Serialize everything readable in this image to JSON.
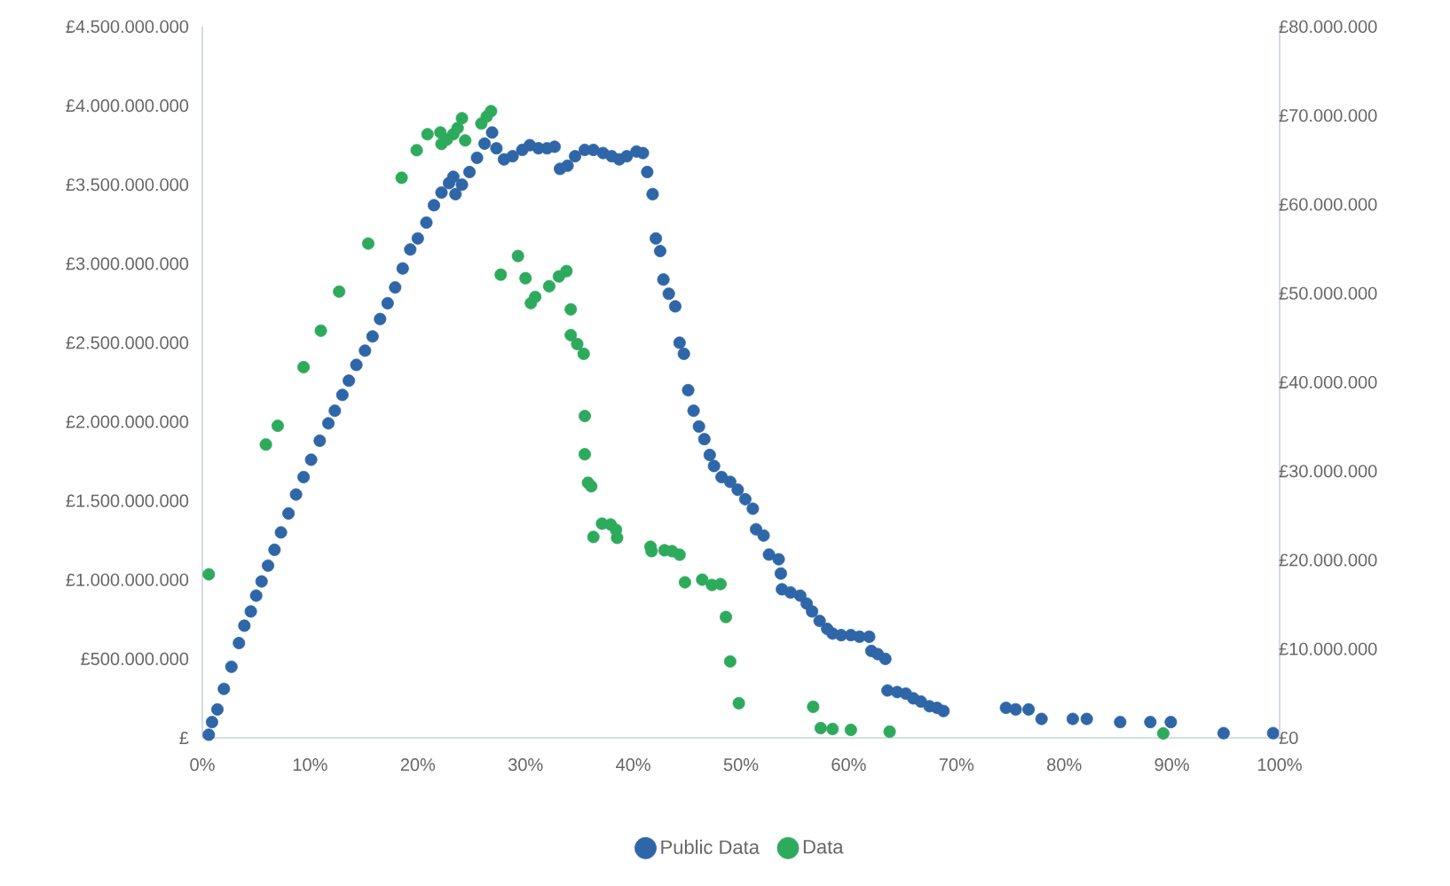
{
  "chart_data": {
    "type": "scatter",
    "marker": "circle",
    "legend": "bottom",
    "xlim": [
      0,
      100
    ],
    "xticks": [
      {
        "value": 0,
        "label": "0%"
      },
      {
        "value": 10,
        "label": "10%"
      },
      {
        "value": 20,
        "label": "20%"
      },
      {
        "value": 30,
        "label": "30%"
      },
      {
        "value": 40,
        "label": "40%"
      },
      {
        "value": 50,
        "label": "50%"
      },
      {
        "value": 60,
        "label": "60%"
      },
      {
        "value": 70,
        "label": "70%"
      },
      {
        "value": 80,
        "label": "80%"
      },
      {
        "value": 90,
        "label": "90%"
      },
      {
        "value": 100,
        "label": "100%"
      }
    ],
    "ylim": [
      0,
      4500000000.0
    ],
    "yticks": [
      {
        "value": 0,
        "label": "£"
      },
      {
        "value": 500000000.0,
        "label": "£500.000.000"
      },
      {
        "value": 1000000000.0,
        "label": "£1.000.000.000"
      },
      {
        "value": 1500000000.0,
        "label": "£1.500.000.000"
      },
      {
        "value": 2000000000.0,
        "label": "£2.000.000.000"
      },
      {
        "value": 2500000000.0,
        "label": "£2.500.000.000"
      },
      {
        "value": 3000000000.0,
        "label": "£3.000.000.000"
      },
      {
        "value": 3500000000.0,
        "label": "£3.500.000.000"
      },
      {
        "value": 4000000000.0,
        "label": "£4.000.000.000"
      },
      {
        "value": 4500000000.0,
        "label": "£4.500.000.000"
      }
    ],
    "y2lim": [
      0,
      80000000.0
    ],
    "y2ticks": [
      {
        "value": 0,
        "label": "£0"
      },
      {
        "value": 10000000.0,
        "label": "£10.000.000"
      },
      {
        "value": 20000000.0,
        "label": "£20.000.000"
      },
      {
        "value": 30000000.0,
        "label": "£30.000.000"
      },
      {
        "value": 40000000.0,
        "label": "£40.000.000"
      },
      {
        "value": 50000000.0,
        "label": "£50.000.000"
      },
      {
        "value": 60000000.0,
        "label": "£60.000.000"
      },
      {
        "value": 70000000.0,
        "label": "£70.000.000"
      },
      {
        "value": 80000000.0,
        "label": "£80.000.000"
      }
    ],
    "series": [
      {
        "name": "Public Data",
        "color": "#2f66a8",
        "x": [
          0.6,
          0.9,
          1.4,
          2.0,
          2.7,
          3.4,
          3.9,
          4.5,
          5.0,
          5.5,
          6.1,
          6.7,
          7.3,
          8.0,
          8.7,
          9.4,
          10.1,
          10.9,
          11.7,
          12.3,
          13.0,
          13.6,
          14.3,
          15.1,
          15.8,
          16.5,
          17.2,
          17.9,
          18.6,
          19.3,
          20.0,
          20.8,
          21.5,
          22.2,
          22.9,
          23.3,
          23.5,
          24.1,
          24.8,
          25.5,
          26.2,
          26.9,
          27.3,
          28.0,
          28.8,
          29.7,
          30.4,
          31.2,
          32.0,
          32.7,
          33.2,
          33.9,
          34.6,
          35.5,
          36.3,
          37.2,
          38.0,
          38.7,
          39.4,
          40.3,
          40.9,
          41.3,
          41.8,
          42.1,
          42.5,
          42.8,
          43.3,
          43.9,
          44.3,
          44.7,
          45.1,
          45.6,
          46.1,
          46.6,
          47.1,
          47.5,
          48.2,
          49.0,
          49.7,
          50.4,
          51.1,
          51.4,
          52.1,
          52.6,
          53.5,
          53.7,
          53.8,
          54.6,
          55.5,
          56.1,
          56.6,
          57.3,
          58.0,
          58.5,
          59.3,
          60.2,
          61.0,
          61.9,
          62.1,
          62.7,
          63.4,
          63.6,
          64.5,
          65.3,
          66.0,
          66.7,
          67.5,
          68.2,
          68.8,
          74.6,
          75.5,
          76.7,
          77.9,
          80.8,
          82.1,
          85.2,
          88.0,
          89.9,
          94.8,
          99.4
        ],
        "values": [
          20000000.0,
          100000000.0,
          180000000.0,
          310000000.0,
          450000000.0,
          600000000.0,
          710000000.0,
          800000000.0,
          900000000.0,
          990000000.0,
          1090000000.0,
          1190000000.0,
          1300000000.0,
          1420000000.0,
          1540000000.0,
          1650000000.0,
          1760000000.0,
          1880000000.0,
          1990000000.0,
          2070000000.0,
          2170000000.0,
          2260000000.0,
          2360000000.0,
          2450000000.0,
          2540000000.0,
          2650000000.0,
          2750000000.0,
          2850000000.0,
          2970000000.0,
          3090000000.0,
          3160000000.0,
          3260000000.0,
          3370000000.0,
          3450000000.0,
          3510000000.0,
          3550000000.0,
          3440000000.0,
          3500000000.0,
          3580000000.0,
          3670000000.0,
          3760000000.0,
          3830000000.0,
          3730000000.0,
          3660000000.0,
          3680000000.0,
          3720000000.0,
          3750000000.0,
          3730000000.0,
          3730000000.0,
          3740000000.0,
          3600000000.0,
          3620000000.0,
          3680000000.0,
          3720000000.0,
          3720000000.0,
          3700000000.0,
          3680000000.0,
          3660000000.0,
          3680000000.0,
          3710000000.0,
          3700000000.0,
          3580000000.0,
          3440000000.0,
          3160000000.0,
          3080000000.0,
          2900000000.0,
          2810000000.0,
          2730000000.0,
          2500000000.0,
          2430000000.0,
          2200000000.0,
          2070000000.0,
          1970000000.0,
          1890000000.0,
          1790000000.0,
          1720000000.0,
          1650000000.0,
          1620000000.0,
          1570000000.0,
          1510000000.0,
          1450000000.0,
          1320000000.0,
          1280000000.0,
          1160000000.0,
          1130000000.0,
          1040000000.0,
          940000000.0,
          920000000.0,
          900000000.0,
          850000000.0,
          800000000.0,
          740000000.0,
          690000000.0,
          660000000.0,
          650000000.0,
          650000000.0,
          640000000.0,
          640000000.0,
          550000000.0,
          530000000.0,
          500000000.0,
          300000000.0,
          290000000.0,
          280000000.0,
          250000000.0,
          230000000.0,
          200000000.0,
          190000000.0,
          170000000.0,
          190000000.0,
          180000000.0,
          180000000.0,
          120000000.0,
          120000000.0,
          120000000.0,
          100000000.0,
          100000000.0,
          100000000.0,
          30000000.0,
          30000000.0
        ]
      },
      {
        "name": "Data",
        "color": "#2eaa5c",
        "axis": "y2",
        "x": [
          0.6,
          5.9,
          7.0,
          9.4,
          11.0,
          12.7,
          15.4,
          18.5,
          19.9,
          20.9,
          22.1,
          22.2,
          22.7,
          23.3,
          23.7,
          24.1,
          24.4,
          25.9,
          26.4,
          26.8,
          27.7,
          29.3,
          30.0,
          30.5,
          30.9,
          32.2,
          33.1,
          33.8,
          34.2,
          34.2,
          34.8,
          35.4,
          35.5,
          35.5,
          35.8,
          36.1,
          36.3,
          37.1,
          37.9,
          38.4,
          38.5,
          41.6,
          41.7,
          42.9,
          43.6,
          44.3,
          44.8,
          46.4,
          47.3,
          48.1,
          48.6,
          49.0,
          49.8,
          56.7,
          57.4,
          58.5,
          60.2,
          63.8,
          89.2
        ],
        "values": [
          18400000.0,
          33000000.0,
          35100000.0,
          41700000.0,
          45800000.0,
          50200000.0,
          55600000.0,
          63000000.0,
          66100000.0,
          67900000.0,
          68100000.0,
          66800000.0,
          67300000.0,
          67900000.0,
          68600000.0,
          69700000.0,
          67200000.0,
          69100000.0,
          69900000.0,
          70500000.0,
          52100000.0,
          54200000.0,
          51700000.0,
          48900000.0,
          49600000.0,
          50800000.0,
          51900000.0,
          52500000.0,
          48200000.0,
          45300000.0,
          44300000.0,
          43200000.0,
          36200000.0,
          31900000.0,
          28700000.0,
          28300000.0,
          22600000.0,
          24100000.0,
          24000000.0,
          23400000.0,
          22500000.0,
          21500000.0,
          21000000.0,
          21100000.0,
          21000000.0,
          20600000.0,
          17500000.0,
          17800000.0,
          17200000.0,
          17300000.0,
          13600000.0,
          8600000.0,
          3900000.0,
          3500000.0,
          1100000.0,
          1000000.0,
          900000.0,
          700000.0,
          500000.0
        ]
      }
    ]
  }
}
